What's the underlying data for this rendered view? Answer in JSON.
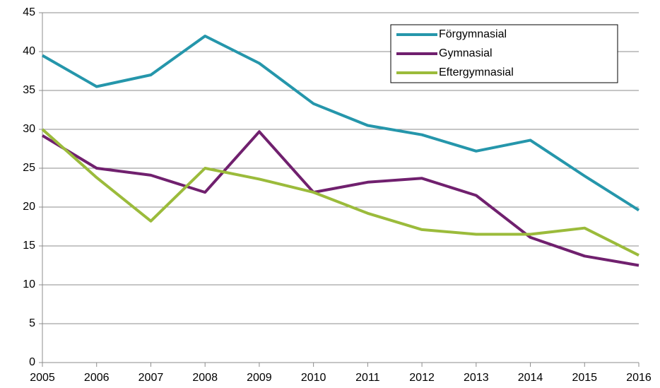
{
  "chart_data": {
    "type": "line",
    "x": [
      2005,
      2006,
      2007,
      2008,
      2009,
      2010,
      2011,
      2012,
      2013,
      2014,
      2015,
      2016
    ],
    "series": [
      {
        "name": "Förgymnasial",
        "color": "#2596ab",
        "values": [
          39.5,
          35.5,
          37,
          42,
          38.5,
          33.3,
          30.5,
          29.3,
          27.2,
          28.6,
          24,
          19.6
        ]
      },
      {
        "name": "Gymnasial",
        "color": "#70206e",
        "values": [
          29.2,
          25,
          24.1,
          21.9,
          29.7,
          21.9,
          23.2,
          23.7,
          21.5,
          16.1,
          13.7,
          12.5
        ]
      },
      {
        "name": "Eftergymnasial",
        "color": "#9bbb3b",
        "values": [
          30,
          23.8,
          18.2,
          25,
          23.6,
          21.9,
          19.2,
          17.1,
          16.5,
          16.5,
          17.3,
          13.8
        ]
      }
    ],
    "xlim": [
      2005,
      2016
    ],
    "xticks": [
      2005,
      2006,
      2007,
      2008,
      2009,
      2010,
      2011,
      2012,
      2013,
      2014,
      2015,
      2016
    ],
    "ylim": [
      0,
      45
    ],
    "yticks": [
      0,
      5,
      10,
      15,
      20,
      25,
      30,
      35,
      40,
      45
    ],
    "grid": true,
    "legend": "upper right"
  }
}
